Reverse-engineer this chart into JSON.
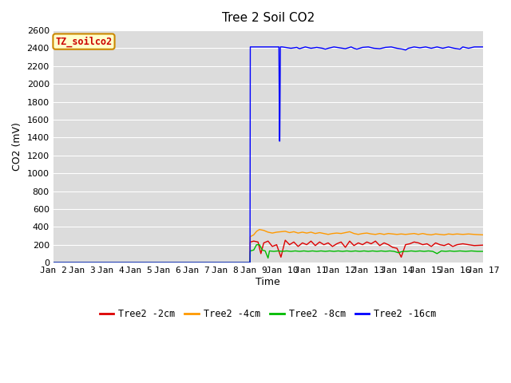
{
  "title": "Tree 2 Soil CO2",
  "xlabel": "Time",
  "ylabel": "CO2 (mV)",
  "ylim": [
    0,
    2600
  ],
  "yticks": [
    0,
    200,
    400,
    600,
    800,
    1000,
    1200,
    1400,
    1600,
    1800,
    2000,
    2200,
    2400,
    2600
  ],
  "x_tick_labels": [
    "Jan 2",
    "Jan 3",
    "Jan 4",
    "Jan 5",
    "Jan 6",
    "Jan 7",
    "Jan 8",
    "Jan 9",
    "Jan 10",
    "Jan 11",
    "Jan 12",
    "Jan 13",
    "Jan 14",
    "Jan 15",
    "Jan 16",
    "Jan 17"
  ],
  "legend_label": "TZ_soilco2",
  "legend_text_color": "#cc0000",
  "legend_bg_color": "#ffffcc",
  "legend_border_color": "#cc8800",
  "plot_bg_color": "#dcdcdc",
  "grid_color": "#ffffff",
  "series_order": [
    "red",
    "orange",
    "green",
    "blue"
  ],
  "series": {
    "red": {
      "label": "Tree2 -2cm",
      "color": "#dd0000",
      "data": [
        [
          2.0,
          0
        ],
        [
          8.87,
          0
        ],
        [
          8.88,
          230
        ],
        [
          9.0,
          240
        ],
        [
          9.15,
          230
        ],
        [
          9.25,
          100
        ],
        [
          9.35,
          220
        ],
        [
          9.5,
          240
        ],
        [
          9.65,
          180
        ],
        [
          9.8,
          200
        ],
        [
          9.95,
          60
        ],
        [
          10.1,
          250
        ],
        [
          10.25,
          200
        ],
        [
          10.4,
          230
        ],
        [
          10.55,
          180
        ],
        [
          10.7,
          220
        ],
        [
          10.85,
          200
        ],
        [
          11.0,
          240
        ],
        [
          11.15,
          190
        ],
        [
          11.3,
          230
        ],
        [
          11.45,
          200
        ],
        [
          11.6,
          220
        ],
        [
          11.75,
          180
        ],
        [
          11.9,
          210
        ],
        [
          12.05,
          230
        ],
        [
          12.2,
          170
        ],
        [
          12.35,
          240
        ],
        [
          12.5,
          190
        ],
        [
          12.65,
          220
        ],
        [
          12.8,
          200
        ],
        [
          12.95,
          230
        ],
        [
          13.1,
          210
        ],
        [
          13.25,
          240
        ],
        [
          13.4,
          190
        ],
        [
          13.55,
          220
        ],
        [
          13.7,
          200
        ],
        [
          13.85,
          170
        ],
        [
          14.0,
          160
        ],
        [
          14.15,
          60
        ],
        [
          14.3,
          200
        ],
        [
          14.45,
          210
        ],
        [
          14.6,
          230
        ],
        [
          14.75,
          220
        ],
        [
          14.9,
          200
        ],
        [
          15.05,
          210
        ],
        [
          15.2,
          180
        ],
        [
          15.35,
          220
        ],
        [
          15.5,
          200
        ],
        [
          15.65,
          190
        ],
        [
          15.8,
          210
        ],
        [
          15.95,
          180
        ],
        [
          16.1,
          200
        ],
        [
          16.3,
          210
        ],
        [
          16.5,
          200
        ],
        [
          16.7,
          190
        ],
        [
          17.0,
          195
        ]
      ]
    },
    "orange": {
      "label": "Tree2 -4cm",
      "color": "#ff9900",
      "data": [
        [
          2.0,
          0
        ],
        [
          8.87,
          0
        ],
        [
          8.88,
          290
        ],
        [
          9.0,
          310
        ],
        [
          9.1,
          350
        ],
        [
          9.2,
          370
        ],
        [
          9.35,
          360
        ],
        [
          9.5,
          340
        ],
        [
          9.65,
          330
        ],
        [
          9.8,
          340
        ],
        [
          9.95,
          345
        ],
        [
          10.1,
          350
        ],
        [
          10.25,
          335
        ],
        [
          10.4,
          345
        ],
        [
          10.55,
          330
        ],
        [
          10.7,
          340
        ],
        [
          10.85,
          330
        ],
        [
          11.0,
          340
        ],
        [
          11.15,
          325
        ],
        [
          11.3,
          335
        ],
        [
          11.45,
          325
        ],
        [
          11.6,
          315
        ],
        [
          11.75,
          325
        ],
        [
          11.9,
          330
        ],
        [
          12.05,
          325
        ],
        [
          12.2,
          335
        ],
        [
          12.35,
          345
        ],
        [
          12.5,
          325
        ],
        [
          12.65,
          315
        ],
        [
          12.8,
          325
        ],
        [
          12.95,
          330
        ],
        [
          13.1,
          320
        ],
        [
          13.25,
          315
        ],
        [
          13.4,
          325
        ],
        [
          13.55,
          315
        ],
        [
          13.7,
          325
        ],
        [
          13.85,
          320
        ],
        [
          14.0,
          315
        ],
        [
          14.15,
          320
        ],
        [
          14.3,
          315
        ],
        [
          14.45,
          320
        ],
        [
          14.6,
          325
        ],
        [
          14.75,
          315
        ],
        [
          14.9,
          325
        ],
        [
          15.05,
          315
        ],
        [
          15.2,
          310
        ],
        [
          15.35,
          320
        ],
        [
          15.5,
          315
        ],
        [
          15.65,
          310
        ],
        [
          15.8,
          320
        ],
        [
          15.95,
          315
        ],
        [
          16.1,
          320
        ],
        [
          16.3,
          315
        ],
        [
          16.5,
          320
        ],
        [
          16.7,
          315
        ],
        [
          17.0,
          310
        ]
      ]
    },
    "green": {
      "label": "Tree2 -8cm",
      "color": "#00bb00",
      "data": [
        [
          2.0,
          0
        ],
        [
          8.87,
          0
        ],
        [
          8.88,
          130
        ],
        [
          9.0,
          140
        ],
        [
          9.1,
          200
        ],
        [
          9.2,
          200
        ],
        [
          9.3,
          140
        ],
        [
          9.4,
          130
        ],
        [
          9.5,
          50
        ],
        [
          9.55,
          130
        ],
        [
          9.7,
          125
        ],
        [
          9.85,
          130
        ],
        [
          10.0,
          125
        ],
        [
          10.15,
          130
        ],
        [
          10.3,
          125
        ],
        [
          10.45,
          130
        ],
        [
          10.6,
          125
        ],
        [
          10.75,
          130
        ],
        [
          10.9,
          125
        ],
        [
          11.05,
          130
        ],
        [
          11.2,
          125
        ],
        [
          11.35,
          130
        ],
        [
          11.5,
          125
        ],
        [
          11.65,
          130
        ],
        [
          11.8,
          125
        ],
        [
          11.95,
          130
        ],
        [
          12.1,
          125
        ],
        [
          12.25,
          130
        ],
        [
          12.4,
          125
        ],
        [
          12.55,
          130
        ],
        [
          12.7,
          125
        ],
        [
          12.85,
          130
        ],
        [
          13.0,
          125
        ],
        [
          13.15,
          130
        ],
        [
          13.3,
          125
        ],
        [
          13.45,
          130
        ],
        [
          13.6,
          125
        ],
        [
          13.75,
          130
        ],
        [
          13.9,
          125
        ],
        [
          14.05,
          110
        ],
        [
          14.2,
          125
        ],
        [
          14.35,
          125
        ],
        [
          14.5,
          130
        ],
        [
          14.65,
          125
        ],
        [
          14.8,
          130
        ],
        [
          14.95,
          125
        ],
        [
          15.1,
          130
        ],
        [
          15.25,
          125
        ],
        [
          15.4,
          100
        ],
        [
          15.55,
          130
        ],
        [
          15.7,
          125
        ],
        [
          15.85,
          130
        ],
        [
          16.0,
          125
        ],
        [
          16.2,
          130
        ],
        [
          16.4,
          125
        ],
        [
          16.6,
          130
        ],
        [
          16.8,
          125
        ],
        [
          17.0,
          125
        ]
      ]
    },
    "blue": {
      "label": "Tree2 -16cm",
      "color": "#0000ff",
      "data": [
        [
          2.0,
          0
        ],
        [
          8.87,
          0
        ],
        [
          8.88,
          2415
        ],
        [
          9.88,
          2415
        ],
        [
          9.9,
          1360
        ],
        [
          9.91,
          1360
        ],
        [
          9.93,
          2415
        ],
        [
          10.0,
          2415
        ],
        [
          10.3,
          2400
        ],
        [
          10.5,
          2410
        ],
        [
          10.6,
          2395
        ],
        [
          10.8,
          2415
        ],
        [
          11.0,
          2400
        ],
        [
          11.2,
          2410
        ],
        [
          11.4,
          2400
        ],
        [
          11.5,
          2390
        ],
        [
          11.6,
          2400
        ],
        [
          11.8,
          2415
        ],
        [
          12.0,
          2405
        ],
        [
          12.2,
          2395
        ],
        [
          12.4,
          2415
        ],
        [
          12.5,
          2400
        ],
        [
          12.6,
          2390
        ],
        [
          12.8,
          2410
        ],
        [
          13.0,
          2415
        ],
        [
          13.2,
          2400
        ],
        [
          13.4,
          2395
        ],
        [
          13.6,
          2410
        ],
        [
          13.8,
          2415
        ],
        [
          14.0,
          2400
        ],
        [
          14.2,
          2390
        ],
        [
          14.3,
          2380
        ],
        [
          14.4,
          2400
        ],
        [
          14.6,
          2415
        ],
        [
          14.8,
          2405
        ],
        [
          15.0,
          2415
        ],
        [
          15.2,
          2400
        ],
        [
          15.4,
          2415
        ],
        [
          15.6,
          2400
        ],
        [
          15.8,
          2415
        ],
        [
          16.0,
          2400
        ],
        [
          16.2,
          2390
        ],
        [
          16.3,
          2415
        ],
        [
          16.5,
          2400
        ],
        [
          16.7,
          2415
        ],
        [
          17.0,
          2415
        ]
      ]
    }
  }
}
